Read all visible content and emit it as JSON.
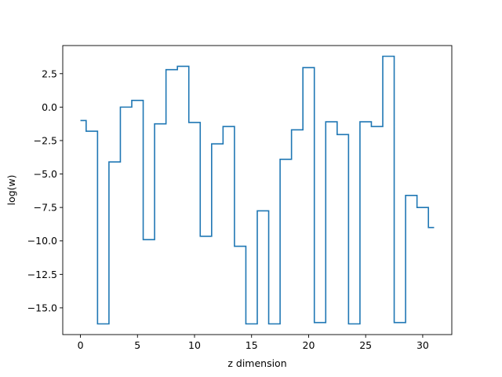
{
  "chart_data": {
    "type": "line",
    "drawstyle": "steps-mid",
    "xlabel": "z dimension",
    "ylabel": "log(w)",
    "xlim": [
      -1.55,
      32.55
    ],
    "ylim": [
      -17.0,
      4.6
    ],
    "xticks": [
      0,
      5,
      10,
      15,
      20,
      25,
      30
    ],
    "xtick_labels": [
      "0",
      "5",
      "10",
      "15",
      "20",
      "25",
      "30"
    ],
    "yticks": [
      2.5,
      0.0,
      -2.5,
      -5.0,
      -7.5,
      -10.0,
      -12.5,
      -15.0
    ],
    "ytick_labels": [
      "2.5",
      "0.0",
      "−2.5",
      "−5.0",
      "−7.5",
      "−10.0",
      "−12.5",
      "−15.0"
    ],
    "grid": false,
    "line_color": "#1f77b4",
    "x": [
      0,
      1,
      2,
      3,
      4,
      5,
      6,
      7,
      8,
      9,
      10,
      11,
      12,
      13,
      14,
      15,
      16,
      17,
      18,
      19,
      20,
      21,
      22,
      23,
      24,
      25,
      26,
      27,
      28,
      29,
      30,
      31
    ],
    "y": [
      -1.0,
      -1.8,
      -16.2,
      -4.1,
      0.0,
      0.5,
      -9.9,
      -1.25,
      2.8,
      3.05,
      -1.15,
      -9.65,
      -2.75,
      -1.45,
      -10.4,
      -16.2,
      -7.75,
      -16.2,
      -3.9,
      -1.7,
      2.95,
      -16.1,
      -1.1,
      -2.05,
      -16.2,
      -1.1,
      -1.45,
      3.8,
      -16.1,
      -6.6,
      -7.5,
      -9.0
    ]
  }
}
